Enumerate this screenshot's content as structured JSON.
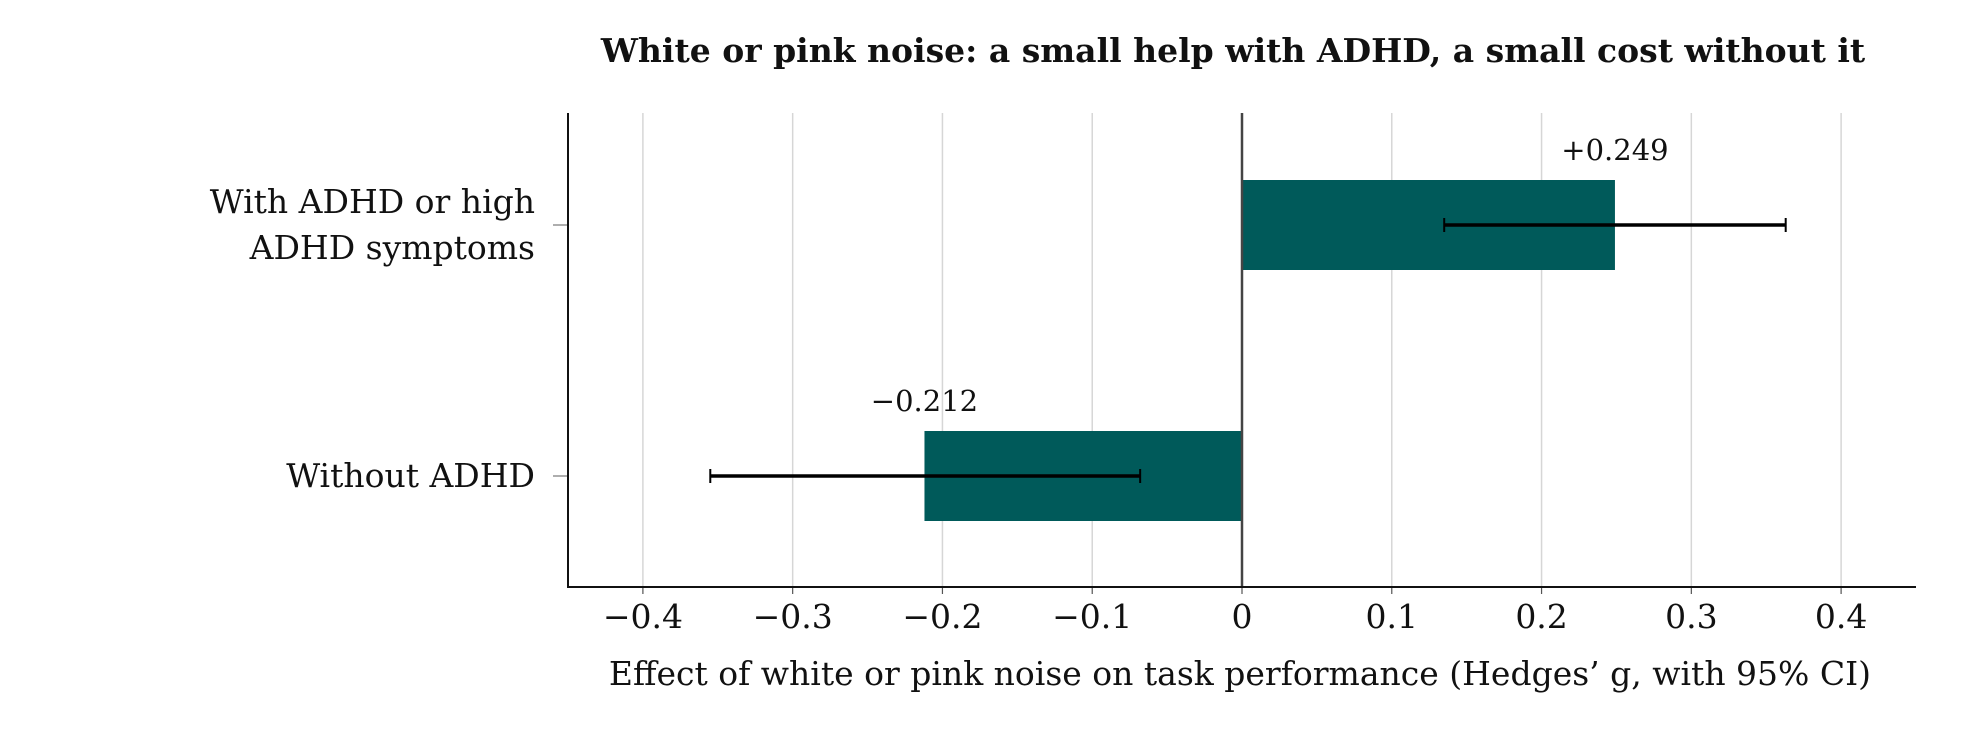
{
  "chart_data": {
    "type": "bar",
    "orientation": "horizontal",
    "title": "White or pink noise: a small help with ADHD, a small cost without it",
    "xlabel": "Effect of white or pink noise on task performance (Hedges’ g, with 95% CI)",
    "ylabel": "",
    "xlim": [
      -0.45,
      0.45
    ],
    "x_ticks": [
      -0.4,
      -0.3,
      -0.2,
      -0.1,
      0,
      0.1,
      0.2,
      0.3,
      0.4
    ],
    "x_tick_labels": [
      "−0.4",
      "−0.3",
      "−0.2",
      "−0.1",
      "0",
      "0.1",
      "0.2",
      "0.3",
      "0.4"
    ],
    "grid": true,
    "legend": "none",
    "bar_color": "#005a5a",
    "categories": [
      {
        "label_lines": [
          "With ADHD or high",
          "ADHD symptoms"
        ],
        "value": 0.249,
        "ci": [
          0.135,
          0.363
        ],
        "value_label": "+0.249"
      },
      {
        "label_lines": [
          "Without ADHD"
        ],
        "value": -0.212,
        "ci": [
          -0.355,
          -0.068
        ],
        "value_label": "−0.212"
      }
    ]
  }
}
